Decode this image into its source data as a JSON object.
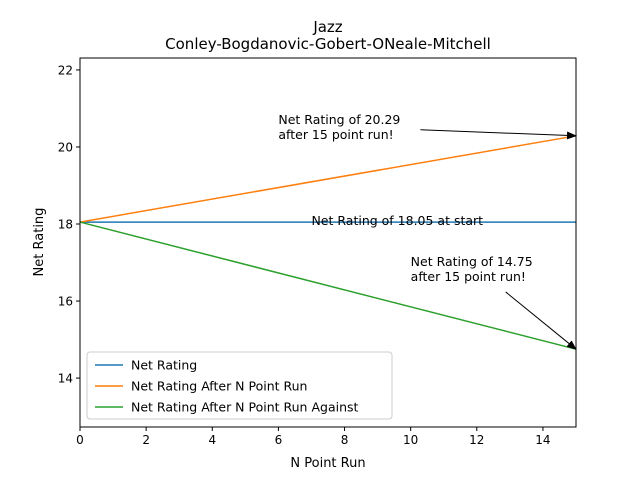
{
  "chart_data": {
    "type": "line",
    "title": "Jazz",
    "subtitle": "Conley-Bogdanovic-Gobert-ONeale-Mitchell",
    "xlabel": "N Point Run",
    "ylabel": "Net Rating",
    "xlim": [
      0,
      15
    ],
    "ylim": [
      12.73,
      22.31
    ],
    "xticks": [
      0,
      2,
      4,
      6,
      8,
      10,
      12,
      14
    ],
    "yticks": [
      14,
      16,
      18,
      20,
      22
    ],
    "grid": false,
    "legend_position": "lower-left",
    "series": [
      {
        "name": "Net Rating",
        "color": "#1f77b4",
        "x": [
          0,
          15
        ],
        "y": [
          18.05,
          18.05
        ]
      },
      {
        "name": "Net Rating After N Point Run",
        "color": "#ff7f0e",
        "x": [
          0,
          15
        ],
        "y": [
          18.05,
          20.29
        ]
      },
      {
        "name": "Net Rating After N Point Run Against",
        "color": "#2ca02c",
        "x": [
          0,
          15
        ],
        "y": [
          18.05,
          14.75
        ]
      }
    ],
    "annotations": [
      {
        "lines": [
          "Net Rating of 20.29",
          "after 15 point run!"
        ],
        "text_at": [
          6,
          20.29
        ],
        "arrow_to": [
          15,
          20.29
        ]
      },
      {
        "lines": [
          "Net Rating of 18.05 at start"
        ],
        "text_at": [
          7,
          18.05
        ]
      },
      {
        "lines": [
          "Net Rating of 14.75",
          "after 15 point run!"
        ],
        "text_at": [
          10,
          16.6
        ],
        "arrow_to": [
          15,
          14.75
        ]
      }
    ]
  }
}
